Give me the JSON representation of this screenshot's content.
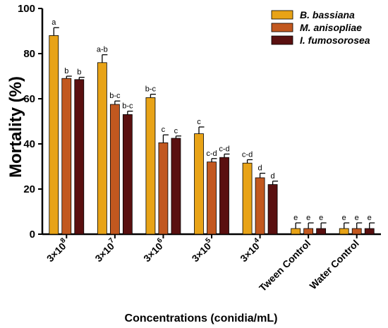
{
  "chart_data": {
    "type": "bar",
    "title": "",
    "xlabel": "Concentrations (conidia/mL)",
    "ylabel": "Mortality (%)",
    "ylim": [
      0,
      100
    ],
    "yticks": [
      0,
      20,
      40,
      60,
      80,
      100
    ],
    "grid": false,
    "legend_position": "top-right",
    "categories": [
      {
        "base": "3×10",
        "exp": "8"
      },
      {
        "base": "3×10",
        "exp": "7"
      },
      {
        "base": "3×10",
        "exp": "6"
      },
      {
        "base": "3×10",
        "exp": "5"
      },
      {
        "base": "3×10",
        "exp": "4"
      },
      {
        "base": "Tween Control",
        "exp": ""
      },
      {
        "base": "Water Control",
        "exp": ""
      }
    ],
    "series": [
      {
        "name": "B. bassiana",
        "color": "#E8A317",
        "values": [
          88,
          76,
          60.5,
          44.5,
          31.5,
          2.5,
          2.5
        ],
        "errors": [
          3.5,
          3.5,
          1.5,
          3,
          1.5,
          2.5,
          2.5
        ],
        "letters": [
          "a",
          "a-b",
          "b-c",
          "c",
          "c-d",
          "e",
          "e"
        ]
      },
      {
        "name": "M. anisopliae",
        "color": "#C2581F",
        "values": [
          69,
          57.5,
          40.5,
          32,
          25,
          2.5,
          2.5
        ],
        "errors": [
          1,
          1.5,
          3.5,
          1.5,
          2,
          2.5,
          2.5
        ],
        "letters": [
          "b",
          "b-c",
          "c",
          "c-d",
          "d",
          "e",
          "e"
        ]
      },
      {
        "name": "I. fumosorosea",
        "color": "#5A1010",
        "values": [
          68.5,
          53,
          42.5,
          34,
          22,
          2.5,
          2.5
        ],
        "errors": [
          1,
          1.5,
          1,
          1.5,
          1.5,
          2.5,
          2.5
        ],
        "letters": [
          "b",
          "b-c",
          "c",
          "c-d",
          "d",
          "e",
          "e"
        ]
      }
    ]
  }
}
